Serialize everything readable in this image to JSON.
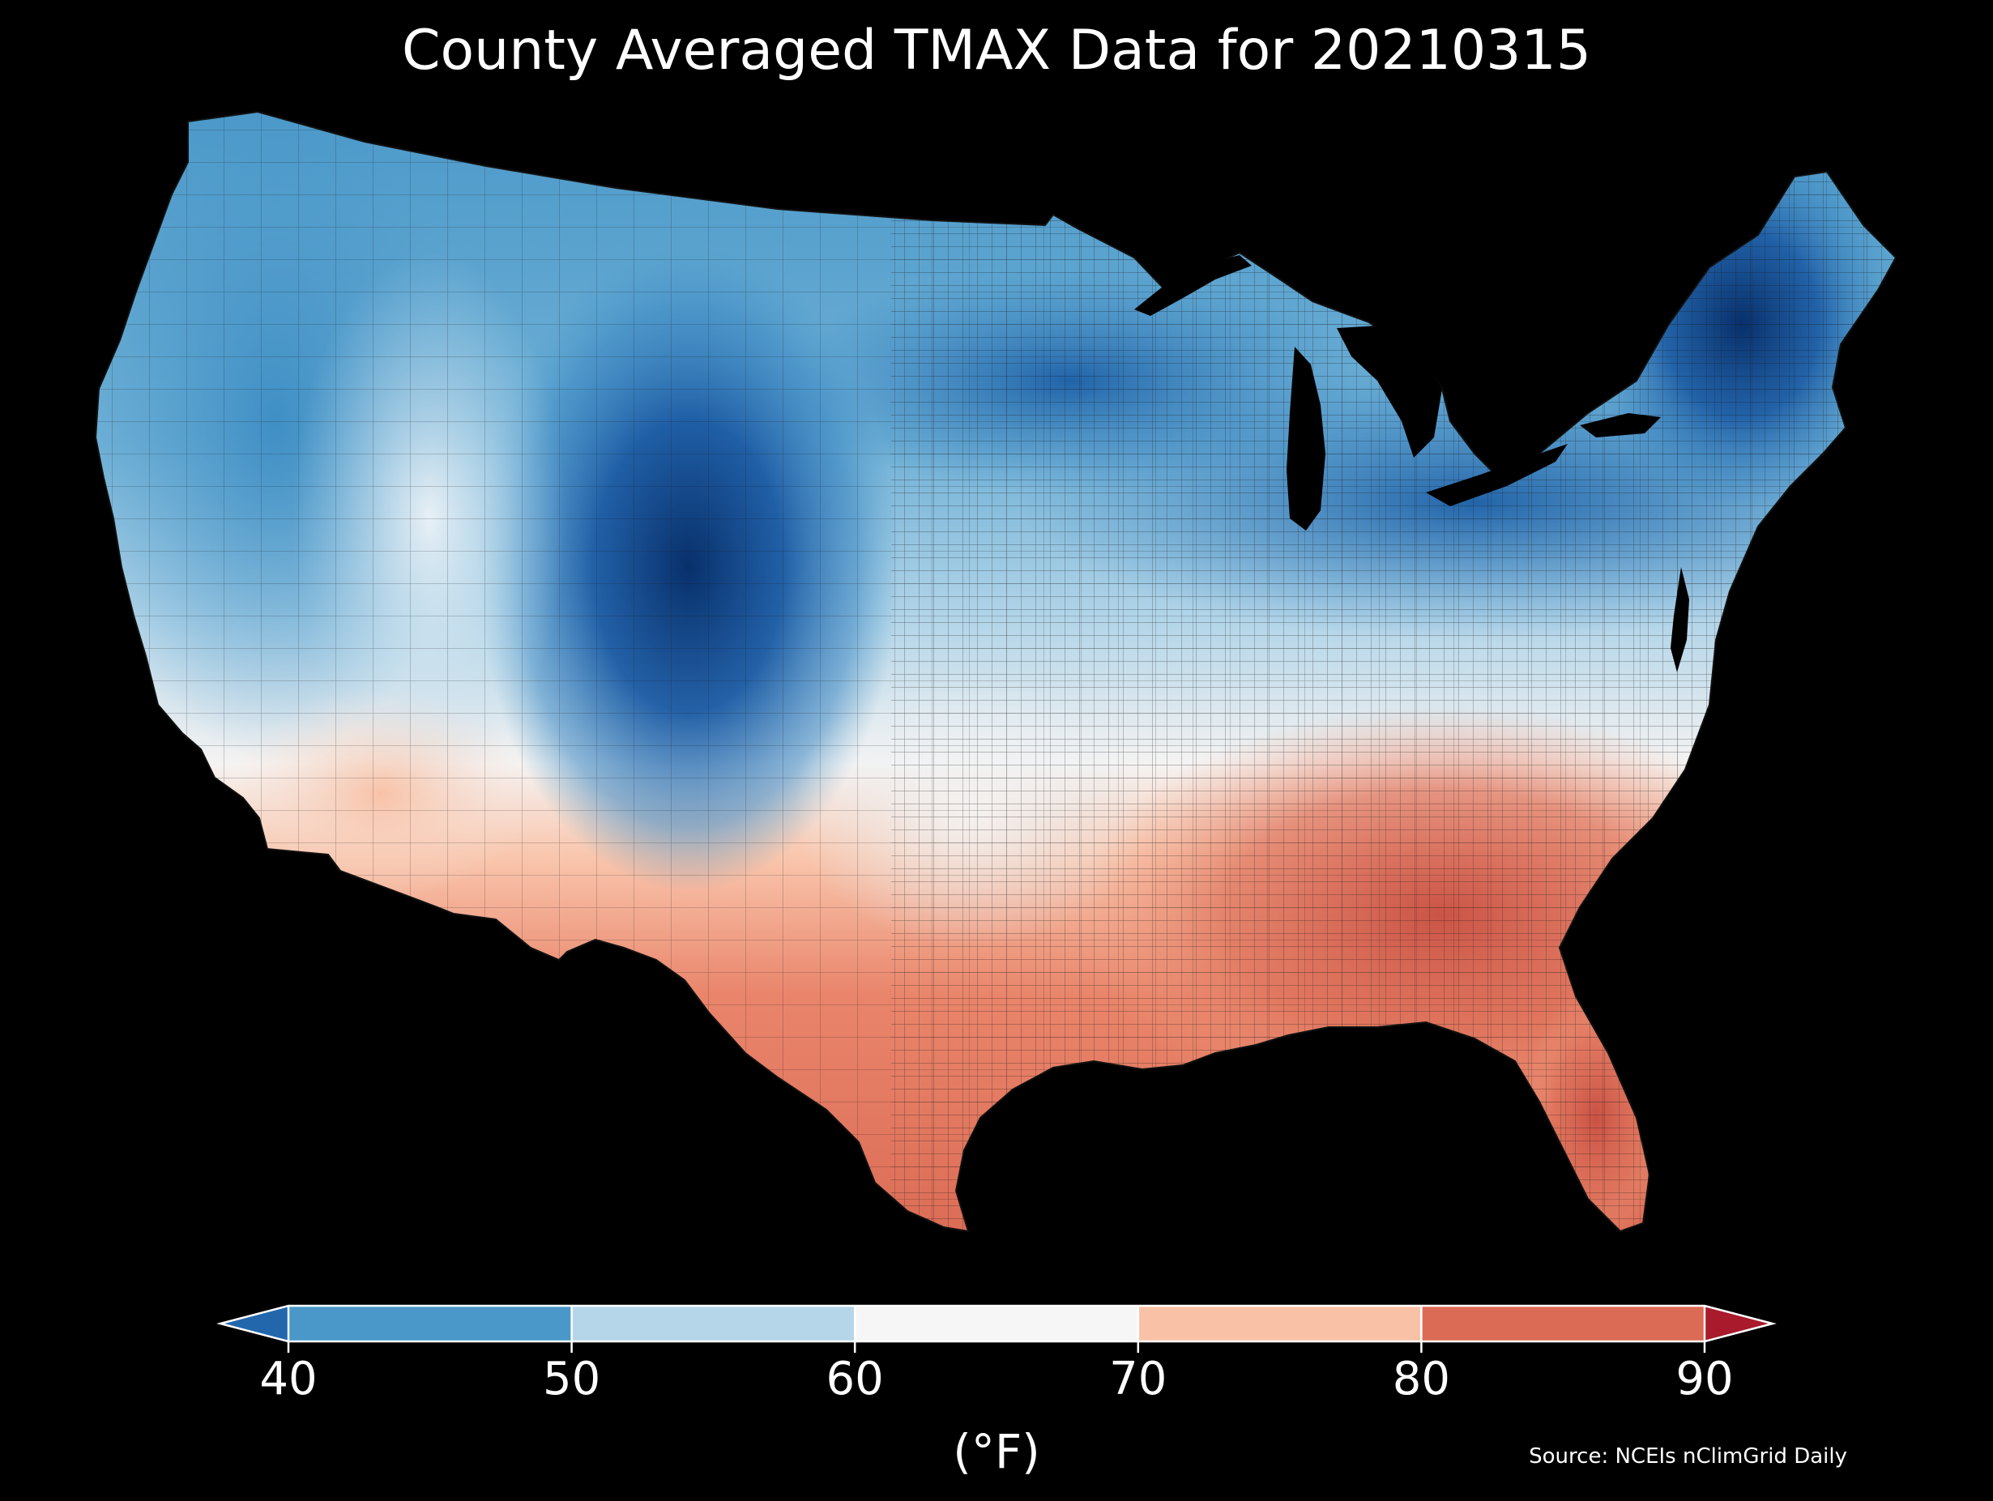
{
  "title": "County Averaged TMAX Data for 20210315",
  "colorbar": {
    "ticks": [
      "40",
      "50",
      "60",
      "70",
      "80",
      "90"
    ],
    "units": "(°F)",
    "bins": [
      {
        "from": 40,
        "to": 50,
        "color": "#4a98c9"
      },
      {
        "from": 50,
        "to": 60,
        "color": "#b5d6e9"
      },
      {
        "from": 60,
        "to": 70,
        "color": "#f7f6f6"
      },
      {
        "from": 70,
        "to": 80,
        "color": "#f9c2a6"
      },
      {
        "from": 80,
        "to": 90,
        "color": "#db6b55"
      }
    ],
    "under_color": "#2266ac",
    "over_color": "#a81a2c"
  },
  "source": "Source: NCEIs nClimGrid Daily",
  "colors": {
    "background": "#000000",
    "coldest": "#08306b",
    "cold": "#2166ac",
    "cool": "#4393c3",
    "mild": "#92c5de",
    "neutral": "#f7f7f7",
    "warm": "#f4a582",
    "hot": "#d6604d",
    "county_border": "#1a1a1a"
  }
}
